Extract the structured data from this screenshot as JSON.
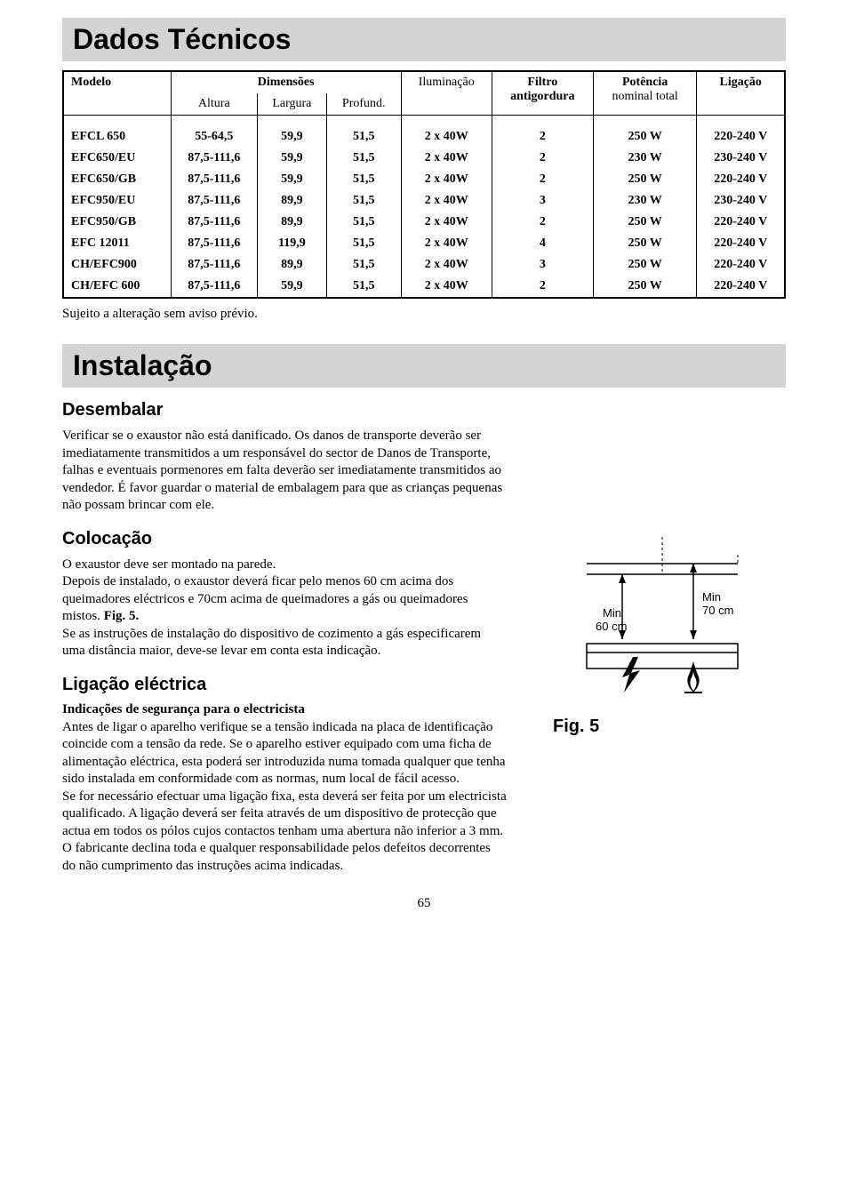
{
  "headers": {
    "dados_tecnicos": "Dados Técnicos",
    "instalacao": "Instalação"
  },
  "table": {
    "columns": {
      "modelo": "Modelo",
      "dimensoes": "Dimensões",
      "altura": "Altura",
      "largura": "Largura",
      "profund": "Profund.",
      "iluminacao": "Iluminação",
      "filtro": "Filtro",
      "antigordura": "antigordura",
      "potencia": "Potência",
      "nominal_total": "nominal total",
      "ligacao": "Ligação"
    },
    "rows": [
      {
        "modelo": "EFCL 650",
        "altura": "55-64,5",
        "largura": "59,9",
        "profund": "51,5",
        "iluminacao": "2 x 40W",
        "filtro": "2",
        "potencia": "250 W",
        "ligacao": "220-240 V"
      },
      {
        "modelo": "EFC650/EU",
        "altura": "87,5-111,6",
        "largura": "59,9",
        "profund": "51,5",
        "iluminacao": "2 x 40W",
        "filtro": "2",
        "potencia": "230 W",
        "ligacao": "230-240 V"
      },
      {
        "modelo": "EFC650/GB",
        "altura": "87,5-111,6",
        "largura": "59,9",
        "profund": "51,5",
        "iluminacao": "2 x 40W",
        "filtro": "2",
        "potencia": "250 W",
        "ligacao": "220-240 V"
      },
      {
        "modelo": "EFC950/EU",
        "altura": "87,5-111,6",
        "largura": "89,9",
        "profund": "51,5",
        "iluminacao": "2 x 40W",
        "filtro": "3",
        "potencia": "230 W",
        "ligacao": "230-240 V"
      },
      {
        "modelo": "EFC950/GB",
        "altura": "87,5-111,6",
        "largura": "89,9",
        "profund": "51,5",
        "iluminacao": "2 x 40W",
        "filtro": "2",
        "potencia": "250 W",
        "ligacao": "220-240 V"
      },
      {
        "modelo": "EFC 12011",
        "altura": "87,5-111,6",
        "largura": "119,9",
        "profund": "51,5",
        "iluminacao": "2 x 40W",
        "filtro": "4",
        "potencia": "250 W",
        "ligacao": "220-240 V"
      },
      {
        "modelo": "CH/EFC900",
        "altura": "87,5-111,6",
        "largura": "89,9",
        "profund": "51,5",
        "iluminacao": "2 x 40W",
        "filtro": "3",
        "potencia": "250 W",
        "ligacao": "220-240 V"
      },
      {
        "modelo": "CH/EFC 600",
        "altura": "87,5-111,6",
        "largura": "59,9",
        "profund": "51,5",
        "iluminacao": "2 x 40W",
        "filtro": "2",
        "potencia": "250 W",
        "ligacao": "220-240 V"
      }
    ]
  },
  "note": "Sujeito a alteração sem aviso prévio.",
  "sections": {
    "desembalar": {
      "title": "Desembalar",
      "body": "Verificar se o exaustor não está danificado. Os danos de transporte deverão ser imediatamente transmitidos a um responsável do sector de Danos de Transporte, falhas e eventuais pormenores em falta deverão ser imediatamente transmitidos ao vendedor. É favor guardar o material de embalagem para que as crianças pequenas não possam brincar com ele."
    },
    "colocacao": {
      "title": "Colocação",
      "body1": "O exaustor deve ser montado na parede.",
      "body2a": "Depois de instalado, o exaustor deverá ficar pelo menos 60 cm acima dos queimadores eléctricos e 70cm acima de queimadores a gás ou queimadores mistos. ",
      "body2b": "Fig. 5.",
      "body3": "Se as instruções de instalação do dispositivo de cozimento a gás especificarem uma distância maior, deve-se levar em conta esta indicação."
    },
    "ligacao": {
      "title": "Ligação eléctrica",
      "subtitle": "Indicações de segurança para o electricista",
      "body1": "Antes de ligar o aparelho verifique se a tensão indicada na placa de identificação coincide com a tensão da rede. Se o aparelho estiver equipado com uma ficha de alimentação eléctrica, esta poderá ser introduzida numa tomada qualquer que tenha sido instalada em conformidade com as normas, num local de fácil acesso.",
      "body2": "Se for necessário efectuar uma ligação fixa, esta deverá ser feita por um electricista qualificado. A ligação deverá ser feita através de um dispositivo de protecção que actua em todos os pólos cujos contactos tenham uma abertura não inferior a 3 mm.",
      "body3": "O fabricante declina toda e qualquer responsabilidade pelos defeitos decorrentes do não cumprimento das instruções acima indicadas."
    }
  },
  "figure": {
    "label": "Fig. 5",
    "min_60": "Min",
    "cm_60": "60 cm",
    "min_70": "Min",
    "cm_70": "70 cm"
  },
  "page_number": "65"
}
